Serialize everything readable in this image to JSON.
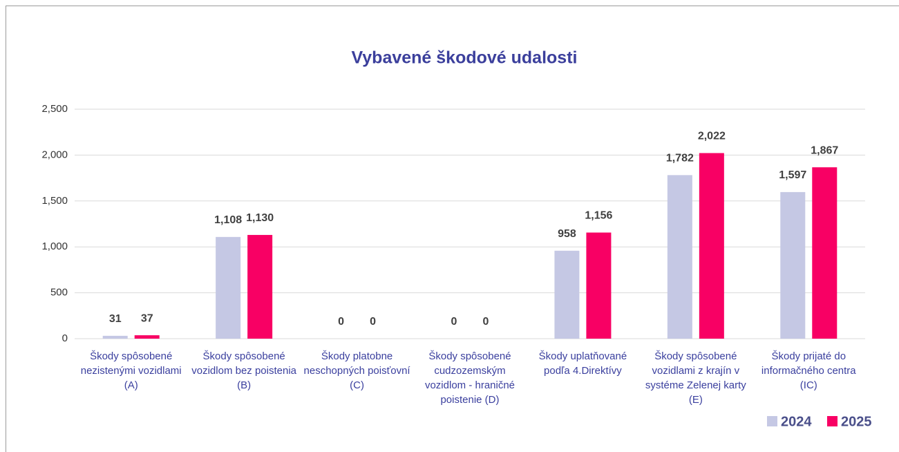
{
  "chart_data": {
    "type": "bar",
    "title": "Vybavené škodové udalosti",
    "categories": [
      "Škody spôsobené nezistenými vozidlami (A)",
      "Škody spôsobené vozidlom bez poistenia (B)",
      "Škody platobne neschopných poisťovní (C)",
      "Škody spôsobené cudzozemským vozidlom - hraničné poistenie (D)",
      "Škody uplatňované podľa 4.Direktívy",
      "Škody spôsobené vozidlami z krajín v systéme Zelenej karty (E)",
      "Škody prijaté do informačného centra (IC)"
    ],
    "series": [
      {
        "name": "2024",
        "color": "#c5c8e4",
        "values": [
          31,
          1108,
          0,
          0,
          958,
          1782,
          1597
        ],
        "value_labels": [
          "31",
          "1,108",
          "0",
          "0",
          "958",
          "1,782",
          "1,597"
        ]
      },
      {
        "name": "2025",
        "color": "#f80064",
        "values": [
          37,
          1130,
          0,
          0,
          1156,
          2022,
          1867
        ],
        "value_labels": [
          "37",
          "1,130",
          "0",
          "0",
          "1,156",
          "2,022",
          "1,867"
        ]
      }
    ],
    "ylim": [
      0,
      2500
    ],
    "yticks": [
      0,
      500,
      {
        "value": 1000,
        "label": "1,000"
      },
      {
        "value": 1500,
        "label": "1,500"
      },
      {
        "value": 2000,
        "label": "2,000"
      },
      {
        "value": 2500,
        "label": "2,500"
      }
    ],
    "grid": true,
    "legend": "bottom-right"
  }
}
